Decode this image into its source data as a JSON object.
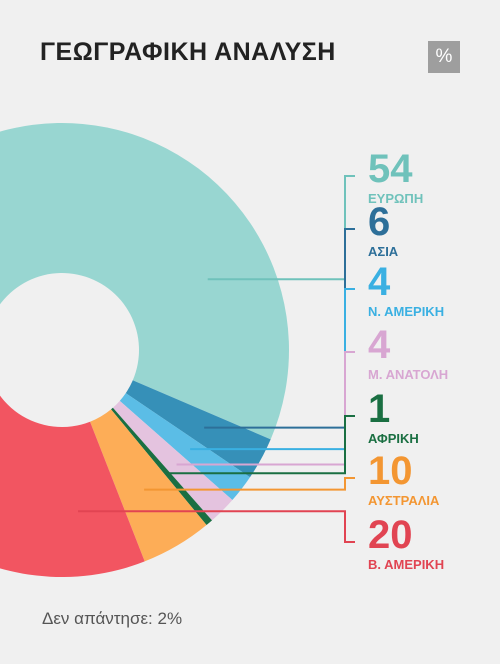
{
  "header": {
    "title": "ΓΕΩΓΡΑΦΙΚΗ ΑΝΑΛΥΣΗ",
    "unit_badge": "%"
  },
  "footnote": "Δεν απάντησε: 2%",
  "chart_data": {
    "type": "pie",
    "title": "ΓΕΩΓΡΑΦΙΚΗ ΑΝΑΛΥΣΗ",
    "unit": "%",
    "slices": [
      {
        "label": "ΕΥΡΩΠΗ",
        "value": 54,
        "display": "54",
        "color": "#98d6d1",
        "label_color": "#6fc2bb"
      },
      {
        "label": "ΑΣΙΑ",
        "value": 6,
        "display": "6",
        "color": "#3690b8",
        "label_color": "#2d6f99"
      },
      {
        "label": "Ν. ΑΜΕΡΙΚΗ",
        "value": 4,
        "display": "4",
        "color": "#5bbde6",
        "label_color": "#3ab0e2"
      },
      {
        "label": "Μ. ΑΝΑΤΟΛΗ",
        "value": 4,
        "display": "4",
        "color": "#e4c3df",
        "label_color": "#d8a6d2"
      },
      {
        "label": "ΑΦΡΙΚΗ",
        "value": 1,
        "display": "1",
        "color": "#1a6f42",
        "label_color": "#1a6f42"
      },
      {
        "label": "ΑΥΣΤΡΑΛΙΑ",
        "value": 10,
        "display": "10",
        "color": "#fdad57",
        "label_color": "#f39632"
      },
      {
        "label": "Β. ΑΜΕΡΙΚΗ",
        "value": 20,
        "display": "20",
        "color": "#f25561",
        "label_color": "#e14452"
      }
    ],
    "no_answer": {
      "label": "Δεν απάντησε",
      "value": 2
    }
  }
}
